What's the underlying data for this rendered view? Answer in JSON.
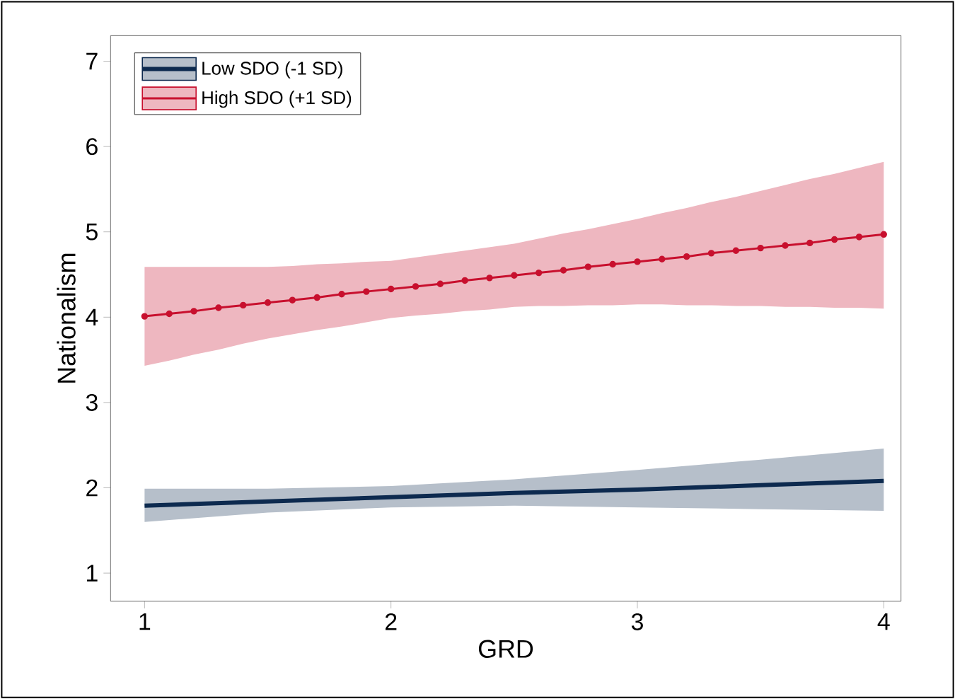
{
  "chart_data": {
    "type": "line",
    "xlabel": "GRD",
    "ylabel": "Nationalism",
    "xlim": [
      0.862,
      4.07
    ],
    "ylim": [
      0.67,
      7.3
    ],
    "xticks": [
      1,
      2,
      3,
      4
    ],
    "yticks": [
      1,
      2,
      3,
      4,
      5,
      6,
      7
    ],
    "legend": "top left",
    "grid": false,
    "series": [
      {
        "name": "Low SDO (-1 SD)",
        "color": "#0d2a4f",
        "marker": "none",
        "x": [
          1,
          1.5,
          2,
          2.5,
          3,
          3.5,
          4
        ],
        "values": [
          1.79,
          1.84,
          1.89,
          1.94,
          1.98,
          2.03,
          2.08
        ],
        "lower": [
          1.6,
          1.71,
          1.77,
          1.79,
          1.77,
          1.75,
          1.73
        ],
        "upper": [
          1.99,
          1.99,
          2.02,
          2.1,
          2.21,
          2.33,
          2.46
        ]
      },
      {
        "name": "High SDO (+1 SD)",
        "color": "#c8102e",
        "marker": "circle",
        "x": [
          1.0,
          1.1,
          1.2,
          1.3,
          1.4,
          1.5,
          1.6,
          1.7,
          1.8,
          1.9,
          2.0,
          2.1,
          2.2,
          2.3,
          2.4,
          2.5,
          2.6,
          2.7,
          2.8,
          2.9,
          3.0,
          3.1,
          3.2,
          3.3,
          3.4,
          3.5,
          3.6,
          3.7,
          3.8,
          3.9,
          4.0
        ],
        "values": [
          4.01,
          4.04,
          4.07,
          4.11,
          4.14,
          4.17,
          4.2,
          4.23,
          4.27,
          4.3,
          4.33,
          4.36,
          4.39,
          4.43,
          4.46,
          4.49,
          4.52,
          4.55,
          4.59,
          4.62,
          4.65,
          4.68,
          4.71,
          4.75,
          4.78,
          4.81,
          4.84,
          4.87,
          4.91,
          4.94,
          4.97
        ],
        "lower": [
          3.43,
          3.49,
          3.56,
          3.62,
          3.69,
          3.75,
          3.8,
          3.85,
          3.89,
          3.94,
          3.99,
          4.02,
          4.04,
          4.07,
          4.09,
          4.12,
          4.13,
          4.13,
          4.14,
          4.14,
          4.15,
          4.15,
          4.14,
          4.14,
          4.13,
          4.13,
          4.12,
          4.12,
          4.11,
          4.11,
          4.1
        ],
        "upper": [
          4.59,
          4.59,
          4.59,
          4.59,
          4.59,
          4.59,
          4.6,
          4.62,
          4.63,
          4.65,
          4.66,
          4.7,
          4.74,
          4.78,
          4.82,
          4.86,
          4.92,
          4.98,
          5.03,
          5.09,
          5.15,
          5.22,
          5.28,
          5.35,
          5.41,
          5.48,
          5.55,
          5.62,
          5.68,
          5.75,
          5.82
        ]
      }
    ]
  }
}
